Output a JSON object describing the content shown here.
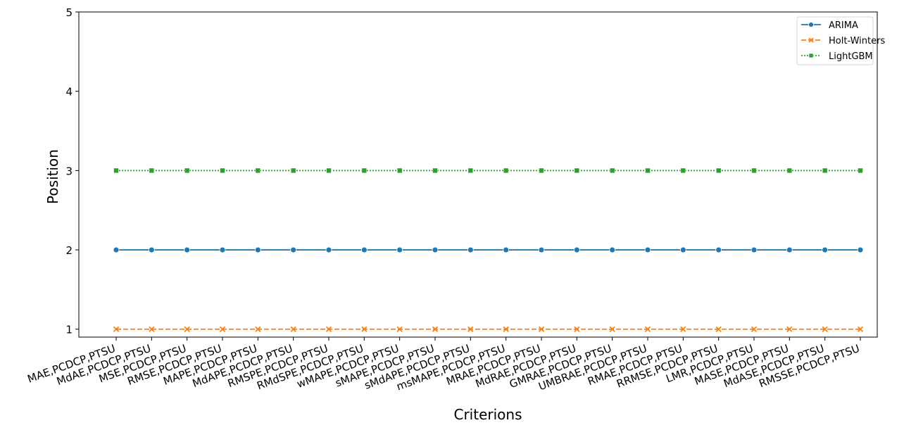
{
  "chart_data": {
    "type": "line",
    "title": "",
    "xlabel": "Criterions",
    "ylabel": "Position",
    "ylim": [
      0.9,
      5
    ],
    "yticks": [
      "1",
      "2",
      "3",
      "4",
      "5"
    ],
    "grid": false,
    "legend_position": "top-right",
    "categories": [
      "MAE,PCDCP,PTSU",
      "MdAE,PCDCP,PTSU",
      "MSE,PCDCP,PTSU",
      "RMSE,PCDCP,PTSU",
      "MAPE,PCDCP,PTSU",
      "MdAPE,PCDCP,PTSU",
      "RMSPE,PCDCP,PTSU",
      "RMdSPE,PCDCP,PTSU",
      "wMAPE,PCDCP,PTSU",
      "sMAPE,PCDCP,PTSU",
      "sMdAPE,PCDCP,PTSU",
      "msMAPE,PCDCP,PTSU",
      "MRAE,PCDCP,PTSU",
      "MdRAE,PCDCP,PTSU",
      "GMRAE,PCDCP,PTSU",
      "UMBRAE,PCDCP,PTSU",
      "RMAE,PCDCP,PTSU",
      "RRMSE,PCDCP,PTSU",
      "LMR,PCDCP,PTSU",
      "MASE,PCDCP,PTSU",
      "MdASE,PCDCP,PTSU",
      "RMSSE,PCDCP,PTSU"
    ],
    "series": [
      {
        "name": "ARIMA",
        "color": "#1f77b4",
        "marker": "circle",
        "linestyle": "solid",
        "values": [
          2,
          2,
          2,
          2,
          2,
          2,
          2,
          2,
          2,
          2,
          2,
          2,
          2,
          2,
          2,
          2,
          2,
          2,
          2,
          2,
          2,
          2
        ]
      },
      {
        "name": "Holt-Winters",
        "color": "#ff7f0e",
        "marker": "x",
        "linestyle": "dashed",
        "values": [
          1,
          1,
          1,
          1,
          1,
          1,
          1,
          1,
          1,
          1,
          1,
          1,
          1,
          1,
          1,
          1,
          1,
          1,
          1,
          1,
          1,
          1
        ]
      },
      {
        "name": "LightGBM",
        "color": "#2ca02c",
        "marker": "square",
        "linestyle": "dotted",
        "values": [
          3,
          3,
          3,
          3,
          3,
          3,
          3,
          3,
          3,
          3,
          3,
          3,
          3,
          3,
          3,
          3,
          3,
          3,
          3,
          3,
          3,
          3
        ]
      }
    ]
  }
}
